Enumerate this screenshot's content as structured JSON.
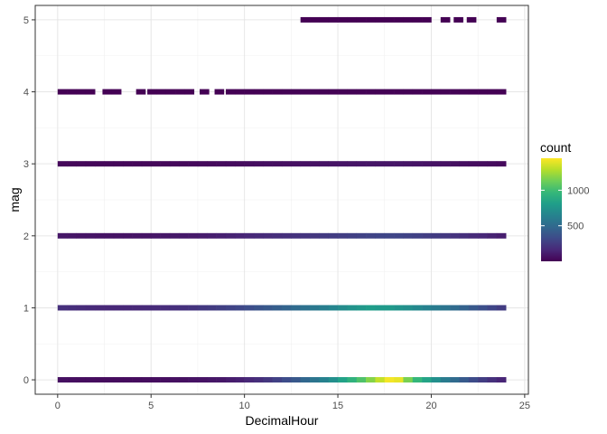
{
  "chart_data": {
    "type": "heatmap",
    "xlabel": "DecimalHour",
    "ylabel": "mag",
    "xlim": [
      -1.2,
      25.2
    ],
    "ylim": [
      -0.2,
      5.2
    ],
    "x_ticks": [
      0,
      5,
      10,
      15,
      20,
      25
    ],
    "y_ticks": [
      0,
      1,
      2,
      3,
      4,
      5
    ],
    "grid": true,
    "theme": "bw",
    "bin_width_hours": 0.5,
    "legend": {
      "title": "count",
      "placement": "right",
      "ticks": [
        500,
        1000
      ],
      "range": [
        0,
        1450
      ],
      "colors": [
        "#440154",
        "#482878",
        "#3e4a89",
        "#31688e",
        "#26828e",
        "#1f9e89",
        "#35b779",
        "#6ece58",
        "#b5de2b",
        "#fde725"
      ]
    },
    "rows": [
      {
        "mag": 0,
        "bins": [
          [
            0,
            60
          ],
          [
            0.5,
            55
          ],
          [
            1,
            50
          ],
          [
            1.5,
            50
          ],
          [
            2,
            45
          ],
          [
            2.5,
            45
          ],
          [
            3,
            45
          ],
          [
            3.5,
            45
          ],
          [
            4,
            45
          ],
          [
            4.5,
            50
          ],
          [
            5,
            50
          ],
          [
            5.5,
            55
          ],
          [
            6,
            60
          ],
          [
            6.5,
            60
          ],
          [
            7,
            70
          ],
          [
            7.5,
            75
          ],
          [
            8,
            85
          ],
          [
            8.5,
            90
          ],
          [
            9,
            110
          ],
          [
            9.5,
            130
          ],
          [
            10,
            160
          ],
          [
            10.5,
            190
          ],
          [
            11,
            230
          ],
          [
            11.5,
            280
          ],
          [
            12,
            340
          ],
          [
            12.5,
            400
          ],
          [
            13,
            480
          ],
          [
            13.5,
            560
          ],
          [
            14,
            640
          ],
          [
            14.5,
            720
          ],
          [
            15,
            830
          ],
          [
            15.5,
            930
          ],
          [
            16,
            1040
          ],
          [
            16.5,
            1180
          ],
          [
            17,
            1320
          ],
          [
            17.5,
            1430
          ],
          [
            18,
            1400
          ],
          [
            18.5,
            1150
          ],
          [
            19,
            960
          ],
          [
            19.5,
            840
          ],
          [
            20,
            720
          ],
          [
            20.5,
            600
          ],
          [
            21,
            500
          ],
          [
            21.5,
            410
          ],
          [
            22,
            330
          ],
          [
            22.5,
            260
          ],
          [
            23,
            200
          ],
          [
            23.5,
            150
          ]
        ]
      },
      {
        "mag": 1,
        "bins": [
          [
            0,
            200
          ],
          [
            0.5,
            190
          ],
          [
            1,
            180
          ],
          [
            1.5,
            170
          ],
          [
            2,
            165
          ],
          [
            2.5,
            160
          ],
          [
            3,
            160
          ],
          [
            3.5,
            160
          ],
          [
            4,
            165
          ],
          [
            4.5,
            170
          ],
          [
            5,
            175
          ],
          [
            5.5,
            185
          ],
          [
            6,
            195
          ],
          [
            6.5,
            205
          ],
          [
            7,
            220
          ],
          [
            7.5,
            235
          ],
          [
            8,
            250
          ],
          [
            8.5,
            270
          ],
          [
            9,
            290
          ],
          [
            9.5,
            310
          ],
          [
            10,
            340
          ],
          [
            10.5,
            370
          ],
          [
            11,
            400
          ],
          [
            11.5,
            430
          ],
          [
            12,
            460
          ],
          [
            12.5,
            500
          ],
          [
            13,
            540
          ],
          [
            13.5,
            580
          ],
          [
            14,
            620
          ],
          [
            14.5,
            660
          ],
          [
            15,
            700
          ],
          [
            15.5,
            740
          ],
          [
            16,
            770
          ],
          [
            16.5,
            800
          ],
          [
            17,
            780
          ],
          [
            17.5,
            780
          ],
          [
            18,
            750
          ],
          [
            18.5,
            720
          ],
          [
            19,
            680
          ],
          [
            19.5,
            640
          ],
          [
            20,
            600
          ],
          [
            20.5,
            560
          ],
          [
            21,
            500
          ],
          [
            21.5,
            450
          ],
          [
            22,
            400
          ],
          [
            22.5,
            350
          ],
          [
            23,
            300
          ],
          [
            23.5,
            260
          ]
        ]
      },
      {
        "mag": 2,
        "bins": [
          [
            0,
            90
          ],
          [
            0.5,
            85
          ],
          [
            1,
            80
          ],
          [
            1.5,
            80
          ],
          [
            2,
            75
          ],
          [
            2.5,
            75
          ],
          [
            3,
            75
          ],
          [
            3.5,
            75
          ],
          [
            4,
            80
          ],
          [
            4.5,
            80
          ],
          [
            5,
            85
          ],
          [
            5.5,
            90
          ],
          [
            6,
            95
          ],
          [
            6.5,
            100
          ],
          [
            7,
            105
          ],
          [
            7.5,
            110
          ],
          [
            8,
            120
          ],
          [
            8.5,
            130
          ],
          [
            9,
            140
          ],
          [
            9.5,
            150
          ],
          [
            10,
            160
          ],
          [
            10.5,
            170
          ],
          [
            11,
            180
          ],
          [
            11.5,
            190
          ],
          [
            12,
            200
          ],
          [
            12.5,
            210
          ],
          [
            13,
            220
          ],
          [
            13.5,
            230
          ],
          [
            14,
            245
          ],
          [
            14.5,
            255
          ],
          [
            15,
            265
          ],
          [
            15.5,
            275
          ],
          [
            16,
            285
          ],
          [
            16.5,
            295
          ],
          [
            17,
            300
          ],
          [
            17.5,
            305
          ],
          [
            18,
            300
          ],
          [
            18.5,
            290
          ],
          [
            19,
            280
          ],
          [
            19.5,
            265
          ],
          [
            20,
            250
          ],
          [
            20.5,
            235
          ],
          [
            21,
            215
          ],
          [
            21.5,
            195
          ],
          [
            22,
            175
          ],
          [
            22.5,
            160
          ],
          [
            23,
            140
          ],
          [
            23.5,
            120
          ]
        ]
      },
      {
        "mag": 3,
        "bins": [
          [
            0,
            30
          ],
          [
            0.5,
            28
          ],
          [
            1,
            27
          ],
          [
            1.5,
            26
          ],
          [
            2,
            25
          ],
          [
            2.5,
            25
          ],
          [
            3,
            25
          ],
          [
            3.5,
            25
          ],
          [
            4,
            26
          ],
          [
            4.5,
            27
          ],
          [
            5,
            28
          ],
          [
            5.5,
            29
          ],
          [
            6,
            30
          ],
          [
            6.5,
            32
          ],
          [
            7,
            34
          ],
          [
            7.5,
            36
          ],
          [
            8,
            38
          ],
          [
            8.5,
            40
          ],
          [
            9,
            43
          ],
          [
            9.5,
            46
          ],
          [
            10,
            50
          ],
          [
            10.5,
            53
          ],
          [
            11,
            56
          ],
          [
            11.5,
            59
          ],
          [
            12,
            62
          ],
          [
            12.5,
            65
          ],
          [
            13,
            68
          ],
          [
            13.5,
            71
          ],
          [
            14,
            74
          ],
          [
            14.5,
            77
          ],
          [
            15,
            80
          ],
          [
            15.5,
            82
          ],
          [
            16,
            84
          ],
          [
            16.5,
            86
          ],
          [
            17,
            87
          ],
          [
            17.5,
            87
          ],
          [
            18,
            85
          ],
          [
            18.5,
            82
          ],
          [
            19,
            79
          ],
          [
            19.5,
            75
          ],
          [
            20,
            70
          ],
          [
            20.5,
            65
          ],
          [
            21,
            60
          ],
          [
            21.5,
            55
          ],
          [
            22,
            50
          ],
          [
            22.5,
            45
          ],
          [
            23,
            40
          ],
          [
            23.5,
            35
          ]
        ]
      },
      {
        "mag": 4,
        "bins": [
          [
            0,
            2
          ],
          [
            0.5,
            2
          ],
          [
            1,
            1
          ],
          [
            1.5,
            1
          ],
          [
            2.4,
            1
          ],
          [
            2.9,
            1
          ],
          [
            4.2,
            1
          ],
          [
            4.8,
            1
          ],
          [
            5.3,
            1
          ],
          [
            5.8,
            1
          ],
          [
            6.3,
            1
          ],
          [
            6.8,
            1
          ],
          [
            7.6,
            1
          ],
          [
            8.4,
            1
          ],
          [
            9,
            1
          ],
          [
            9.5,
            2
          ],
          [
            10,
            2
          ],
          [
            10.5,
            2
          ],
          [
            11,
            2
          ],
          [
            11.5,
            2
          ],
          [
            12,
            3
          ],
          [
            12.5,
            3
          ],
          [
            13,
            3
          ],
          [
            13.5,
            3
          ],
          [
            14,
            3
          ],
          [
            14.5,
            3
          ],
          [
            15,
            4
          ],
          [
            15.5,
            4
          ],
          [
            16,
            4
          ],
          [
            16.5,
            4
          ],
          [
            17,
            4
          ],
          [
            17.5,
            4
          ],
          [
            18,
            4
          ],
          [
            18.5,
            4
          ],
          [
            19,
            4
          ],
          [
            19.5,
            3
          ],
          [
            20,
            3
          ],
          [
            20.5,
            3
          ],
          [
            21,
            3
          ],
          [
            21.5,
            3
          ],
          [
            22,
            2
          ],
          [
            22.5,
            2
          ],
          [
            23,
            2
          ],
          [
            23.5,
            2
          ]
        ]
      },
      {
        "mag": 5,
        "bins": [
          [
            13,
            1
          ],
          [
            13.5,
            1
          ],
          [
            14,
            1
          ],
          [
            14.5,
            1
          ],
          [
            15,
            1
          ],
          [
            15.5,
            1
          ],
          [
            16,
            1
          ],
          [
            16.5,
            1
          ],
          [
            17,
            1
          ],
          [
            17.5,
            1
          ],
          [
            18,
            1
          ],
          [
            18.5,
            1
          ],
          [
            19,
            1
          ],
          [
            19.5,
            1
          ],
          [
            20.5,
            1
          ],
          [
            21.2,
            1
          ],
          [
            21.9,
            1
          ],
          [
            23.5,
            1
          ]
        ]
      }
    ]
  }
}
